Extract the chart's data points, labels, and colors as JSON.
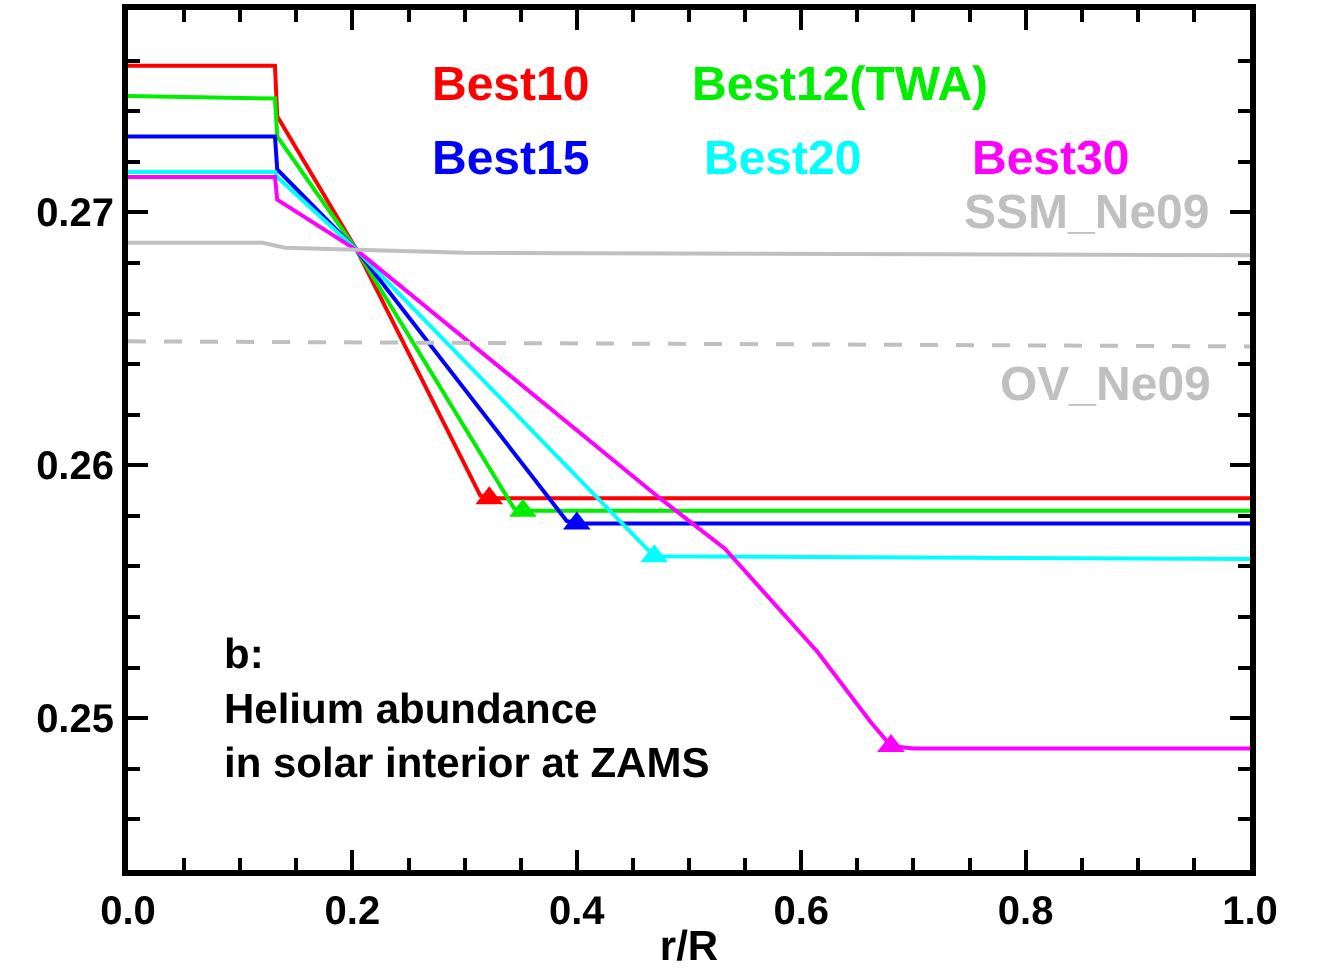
{
  "chart_data": {
    "type": "line",
    "xlabel": "r/R",
    "xlim": [
      0,
      1
    ],
    "ylim": [
      0.244,
      0.278
    ],
    "xticks": [
      {
        "value": 0,
        "label": "0.0"
      },
      {
        "value": 0.05,
        "label": null
      },
      {
        "value": 0.1,
        "label": null
      },
      {
        "value": 0.15,
        "label": null
      },
      {
        "value": 0.2,
        "label": "0.2"
      },
      {
        "value": 0.25,
        "label": null
      },
      {
        "value": 0.3,
        "label": null
      },
      {
        "value": 0.35,
        "label": null
      },
      {
        "value": 0.4,
        "label": "0.4"
      },
      {
        "value": 0.45,
        "label": null
      },
      {
        "value": 0.5,
        "label": null
      },
      {
        "value": 0.55,
        "label": null
      },
      {
        "value": 0.6,
        "label": "0.6"
      },
      {
        "value": 0.65,
        "label": null
      },
      {
        "value": 0.7,
        "label": null
      },
      {
        "value": 0.75,
        "label": null
      },
      {
        "value": 0.8,
        "label": "0.8"
      },
      {
        "value": 0.85,
        "label": null
      },
      {
        "value": 0.9,
        "label": null
      },
      {
        "value": 0.95,
        "label": null
      },
      {
        "value": 1,
        "label": "1.0"
      }
    ],
    "yticks": [
      {
        "value": 0.246,
        "label": null
      },
      {
        "value": 0.248,
        "label": null
      },
      0.25,
      {
        "value": 0.252,
        "label": null
      },
      {
        "value": 0.254,
        "label": null
      },
      {
        "value": 0.256,
        "label": null
      },
      {
        "value": 0.258,
        "label": null
      },
      0.26,
      {
        "value": 0.262,
        "label": null
      },
      {
        "value": 0.264,
        "label": null
      },
      {
        "value": 0.266,
        "label": null
      },
      {
        "value": 0.268,
        "label": null
      },
      0.27,
      {
        "value": 0.272,
        "label": null
      },
      {
        "value": 0.274,
        "label": null
      },
      {
        "value": 0.276,
        "label": null
      }
    ],
    "grid": false,
    "legend": false,
    "marker": "none",
    "series": [
      {
        "name": "Best10",
        "color": "#ff0000",
        "x": [
          0,
          0.131,
          0.133,
          0.204,
          0.314,
          0.322,
          1.0
        ],
        "values": [
          0.2758,
          0.2758,
          0.2738,
          0.2685,
          0.2588,
          0.2587,
          0.2587
        ]
      },
      {
        "name": "Best12(TWA)",
        "color": "#00ee00",
        "x": [
          0,
          0.131,
          0.133,
          0.204,
          0.344,
          0.352,
          1.0
        ],
        "values": [
          0.2746,
          0.2745,
          0.273,
          0.2685,
          0.2583,
          0.2582,
          0.2582
        ]
      },
      {
        "name": "Best15",
        "color": "#0000ff",
        "x": [
          0,
          0.131,
          0.133,
          0.204,
          0.391,
          0.4,
          1.0
        ],
        "values": [
          0.273,
          0.273,
          0.2717,
          0.2685,
          0.2578,
          0.2577,
          0.2577
        ]
      },
      {
        "name": "Best20",
        "color": "#00ffff",
        "x": [
          0,
          0.131,
          0.133,
          0.204,
          0.469,
          1.0
        ],
        "values": [
          0.2716,
          0.2716,
          0.2714,
          0.2685,
          0.2564,
          0.2563
        ]
      },
      {
        "name": "Best30",
        "color": "#ff00ff",
        "x": [
          0,
          0.131,
          0.133,
          0.204,
          0.474,
          0.532,
          0.615,
          0.661,
          0.68,
          0.7,
          1.0
        ],
        "values": [
          0.2714,
          0.2714,
          0.2705,
          0.2685,
          0.2587,
          0.2567,
          0.2526,
          0.2499,
          0.2489,
          0.2488,
          0.2488
        ]
      },
      {
        "name": "SSM_Ne09",
        "color": "#c0c0c0",
        "x": [
          0,
          0.12,
          0.14,
          0.3,
          1.0
        ],
        "values": [
          0.2688,
          0.2688,
          0.2686,
          0.2684,
          0.2683
        ]
      },
      {
        "name": "OV_Ne09",
        "color": "#c0c0c0",
        "line_style": "dashed",
        "x": [
          0,
          1.0
        ],
        "values": [
          0.2649,
          0.2647
        ]
      },
      {
        "type": "scatter",
        "marker": "triangle",
        "x": [
          0.322,
          0.352,
          0.4,
          0.469,
          0.68
        ],
        "values": [
          0.2587,
          0.2582,
          0.2577,
          0.2564,
          0.2489
        ],
        "colors": [
          "#ff0000",
          "#00ee00",
          "#0000ff",
          "#00ffff",
          "#ff00ff"
        ]
      }
    ],
    "annotations": [
      "b:\nHelium abundance\nin solar interior at ZAMS"
    ]
  }
}
